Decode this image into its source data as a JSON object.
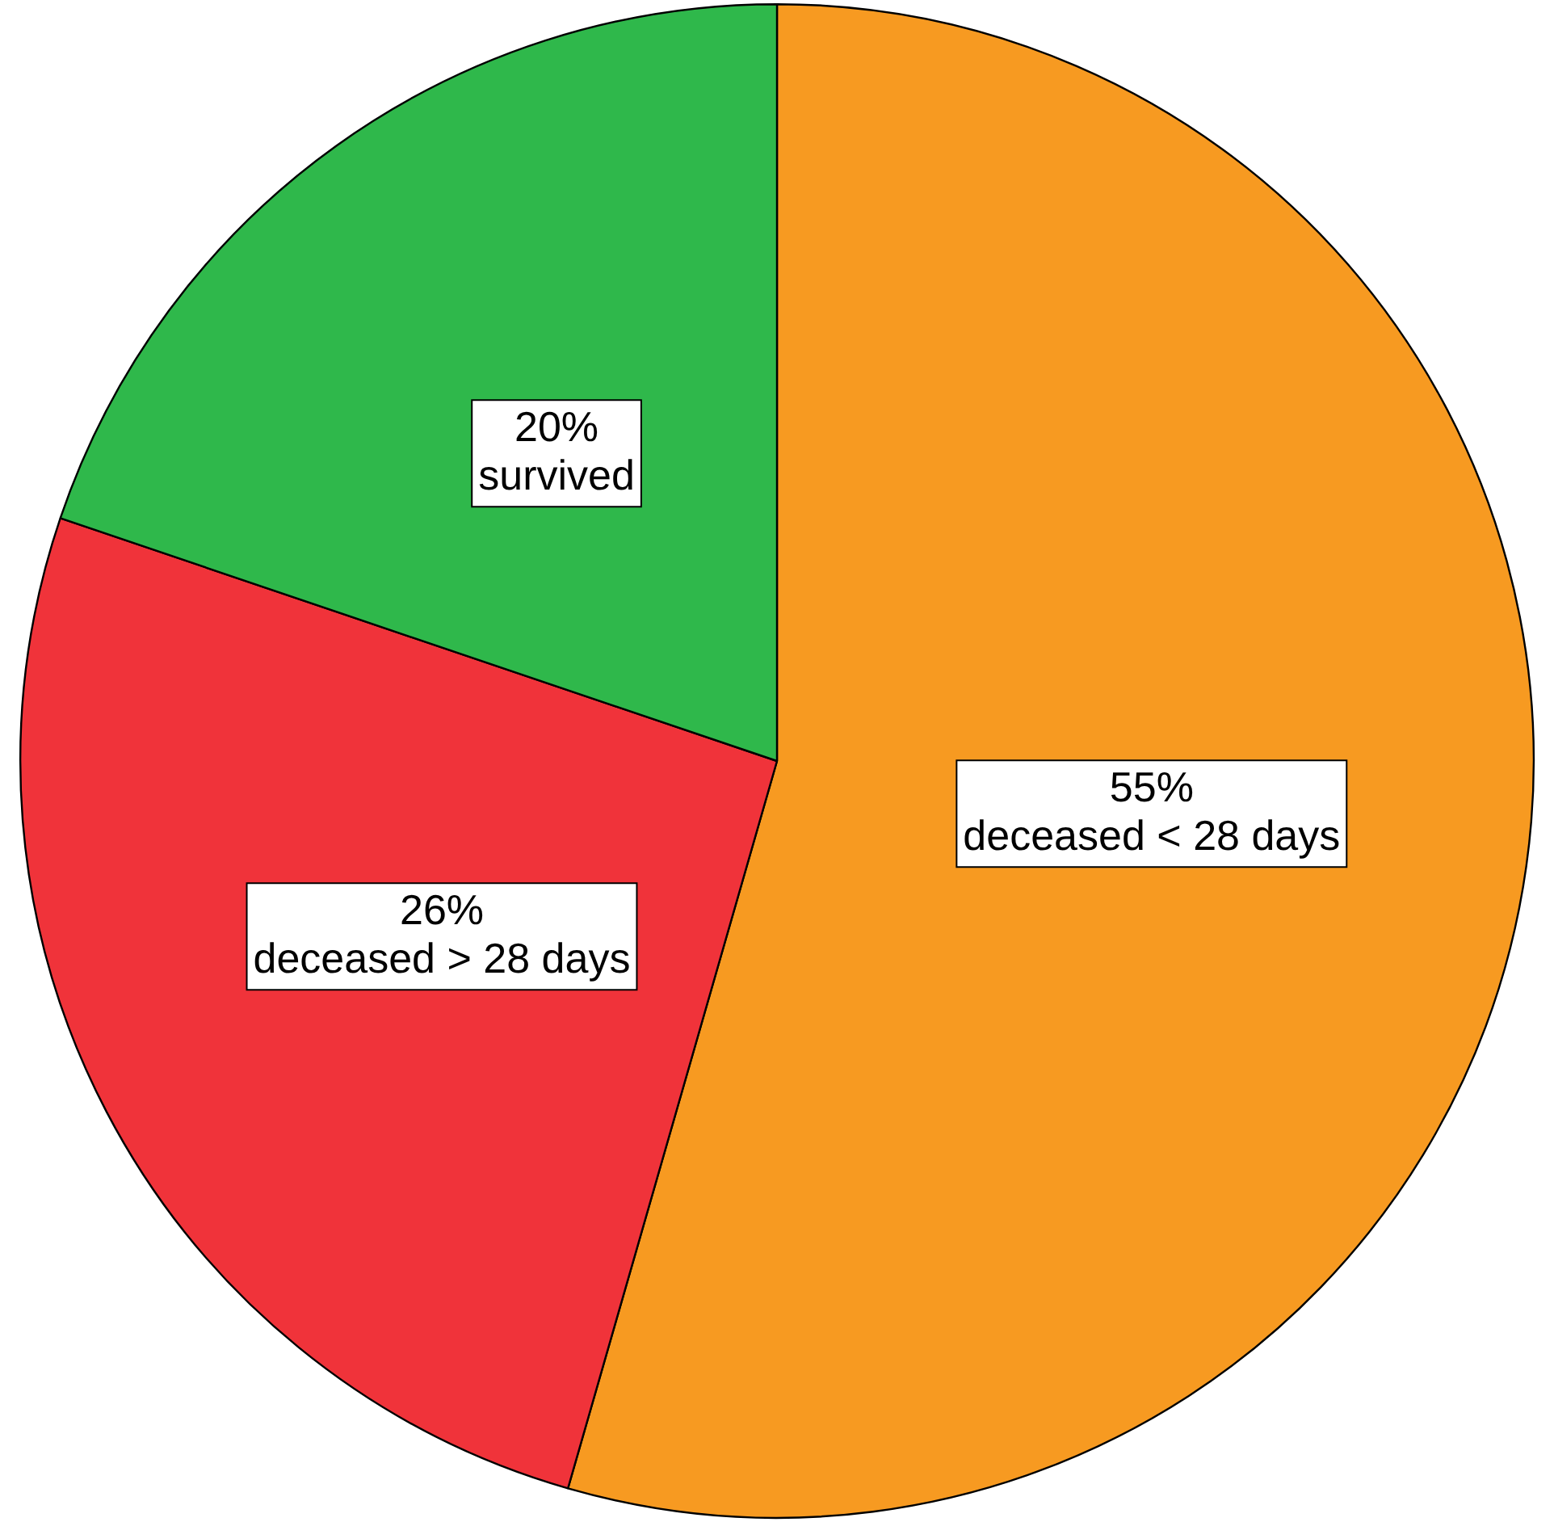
{
  "chart_data": {
    "type": "pie",
    "categories": [
      "deceased < 28 days",
      "deceased > 28 days",
      "survived"
    ],
    "values": [
      55,
      26,
      20
    ],
    "colors": [
      "#f79a21",
      "#f0333a",
      "#2fb84b"
    ],
    "value_labels": [
      "55%",
      "26%",
      "20%"
    ],
    "legend": false
  }
}
